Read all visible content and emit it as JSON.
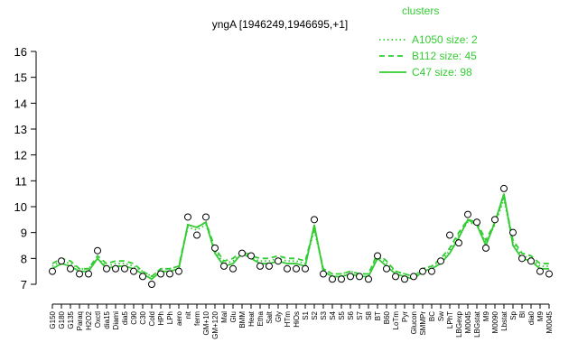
{
  "chart_data": {
    "type": "line",
    "title": "yngA [1946249,1946695,+1]",
    "legend_title": "clusters",
    "categories": [
      "G150",
      "G180",
      "G135",
      "Paraq",
      "H2O2",
      "Oxctl",
      "dia15",
      "Diami",
      "dia5",
      "C90",
      "C30",
      "Cold",
      "HPh",
      "LPh",
      "aero",
      "nit",
      "ferm",
      "GM+10",
      "GM+120",
      "Mal",
      "Glu",
      "BMM",
      "Heat",
      "Etha",
      "Salt",
      "Gly",
      "HTm",
      "HiOs",
      "S1",
      "S2",
      "S3",
      "S4",
      "S5",
      "S6",
      "S7",
      "S8",
      "BT",
      "B60",
      "LoTm",
      "Pyr",
      "Glucon",
      "SMMPr",
      "BC",
      "Sw",
      "LPhT",
      "LBGexp",
      "M0045",
      "LBGstat",
      "M9",
      "M0090",
      "Lbstat",
      "Sp",
      "Bl",
      "dia0",
      "M9",
      "M0045"
    ],
    "series": [
      {
        "name": "A1050 size: 2",
        "color": "#33cc33",
        "dash": "dotted",
        "values": [
          7.7,
          7.9,
          7.8,
          7.6,
          7.6,
          8.0,
          7.7,
          7.8,
          7.8,
          7.7,
          7.5,
          7.3,
          7.6,
          7.6,
          7.7,
          9.2,
          9.1,
          9.3,
          8.3,
          7.8,
          7.9,
          8.2,
          8.0,
          7.9,
          7.9,
          8.0,
          7.9,
          7.9,
          7.8,
          9.1,
          7.6,
          7.4,
          7.4,
          7.5,
          7.4,
          7.4,
          8.1,
          7.8,
          7.5,
          7.4,
          7.3,
          7.6,
          7.7,
          7.9,
          8.3,
          8.9,
          9.4,
          9.3,
          8.6,
          9.3,
          10.3,
          8.6,
          8.1,
          8.0,
          7.7,
          7.7
        ]
      },
      {
        "name": "B112 size: 45",
        "color": "#33cc33",
        "dash": "dashed",
        "values": [
          7.8,
          8.0,
          7.9,
          7.6,
          7.6,
          8.1,
          7.8,
          7.9,
          7.9,
          7.8,
          7.5,
          7.3,
          7.6,
          7.6,
          7.7,
          9.3,
          9.2,
          9.4,
          8.4,
          7.9,
          8.0,
          8.3,
          8.1,
          8.0,
          8.0,
          8.1,
          8.0,
          8.0,
          7.9,
          9.2,
          7.6,
          7.4,
          7.4,
          7.5,
          7.4,
          7.4,
          8.2,
          7.9,
          7.5,
          7.4,
          7.3,
          7.6,
          7.7,
          8.0,
          8.4,
          9.0,
          9.5,
          9.4,
          8.7,
          9.4,
          10.4,
          8.7,
          8.2,
          8.1,
          7.8,
          7.8
        ]
      },
      {
        "name": "C47 size: 98",
        "color": "#33cc33",
        "dash": "solid",
        "values": [
          7.6,
          7.8,
          7.7,
          7.5,
          7.5,
          8.0,
          7.6,
          7.7,
          7.7,
          7.6,
          7.4,
          7.2,
          7.5,
          7.5,
          7.6,
          9.3,
          9.2,
          9.4,
          8.2,
          7.7,
          7.8,
          8.2,
          8.0,
          7.8,
          7.8,
          7.9,
          7.8,
          7.8,
          7.7,
          9.3,
          7.5,
          7.3,
          7.3,
          7.4,
          7.3,
          7.3,
          8.0,
          7.7,
          7.4,
          7.3,
          7.2,
          7.5,
          7.6,
          7.8,
          8.2,
          8.8,
          9.5,
          9.3,
          8.5,
          9.4,
          10.5,
          8.5,
          8.0,
          7.9,
          7.6,
          7.6
        ]
      }
    ],
    "points": {
      "values": [
        7.5,
        7.9,
        7.6,
        7.4,
        7.4,
        8.3,
        7.6,
        7.6,
        7.6,
        7.5,
        7.3,
        7.0,
        7.4,
        7.4,
        7.5,
        9.6,
        8.9,
        9.6,
        8.4,
        7.7,
        7.6,
        8.2,
        8.1,
        7.7,
        7.7,
        7.9,
        7.6,
        7.6,
        7.6,
        9.5,
        7.4,
        7.2,
        7.2,
        7.3,
        7.3,
        7.2,
        8.1,
        7.6,
        7.3,
        7.2,
        7.3,
        7.5,
        7.5,
        7.9,
        8.9,
        8.6,
        9.7,
        9.4,
        8.4,
        9.5,
        10.7,
        9.0,
        8.0,
        7.9,
        7.5,
        7.4
      ]
    },
    "ylim": [
      7,
      16
    ],
    "yticks": [
      7,
      8,
      9,
      10,
      11,
      12,
      13,
      14,
      15,
      16
    ]
  }
}
